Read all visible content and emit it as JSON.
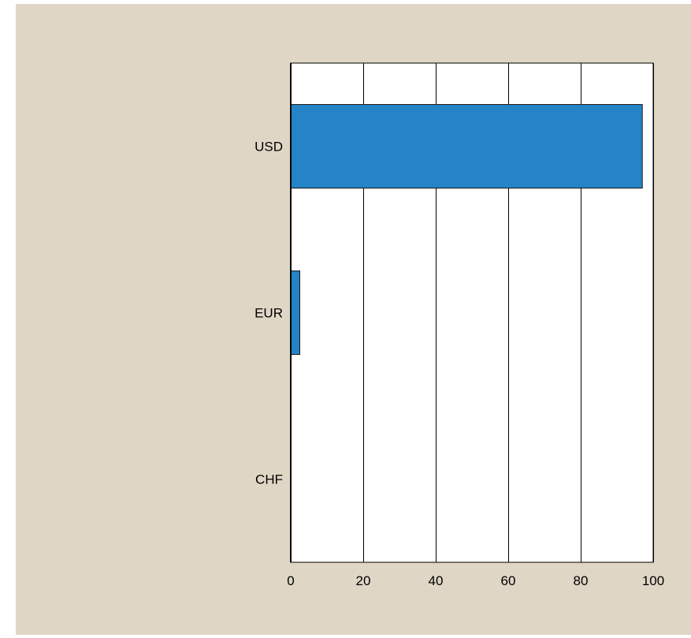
{
  "colors": {
    "panel_background": "#e0d6c5",
    "plot_background": "#ffffff",
    "bar_fill": "#2484c6",
    "gridline": "#000000"
  },
  "chart_data": {
    "type": "bar",
    "orientation": "horizontal",
    "categories": [
      "USD",
      "EUR",
      "CHF"
    ],
    "values": [
      97,
      2.5,
      0
    ],
    "xlim": [
      0,
      100
    ],
    "xticks": [
      0,
      20,
      40,
      60,
      80,
      100
    ],
    "grid": true,
    "title": "",
    "xlabel": "",
    "ylabel": ""
  }
}
